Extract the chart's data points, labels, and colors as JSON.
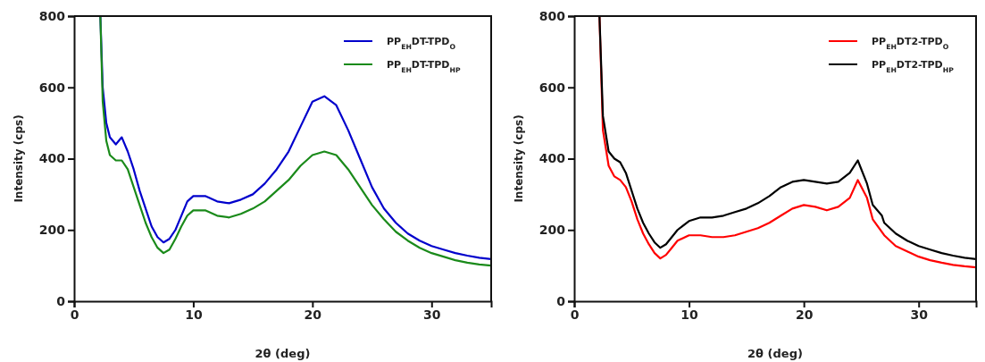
{
  "chart_data": [
    {
      "type": "line",
      "xlabel": "2θ (deg)",
      "ylabel": "Intensity (cps)",
      "xlim": [
        0,
        35
      ],
      "ylim": [
        0,
        800
      ],
      "xticks": [
        0,
        10,
        20,
        30
      ],
      "yticks": [
        0,
        200,
        400,
        600,
        800
      ],
      "legend": "top right",
      "grid": false,
      "marker": "none",
      "line_style": "solid",
      "series": [
        {
          "name": "PP$_{EH}$DT-TPD$_{O}$",
          "color": "#0000cc",
          "x": [
            2.2,
            2.4,
            2.7,
            3,
            3.5,
            4,
            4.5,
            5,
            5.5,
            6,
            6.5,
            7,
            7.5,
            8,
            8.5,
            9,
            9.5,
            10,
            11,
            12,
            13,
            14,
            15,
            16,
            17,
            18,
            19,
            20,
            21,
            22,
            23,
            24,
            25,
            26,
            27,
            28,
            29,
            30,
            31,
            32,
            33,
            34,
            35
          ],
          "values": [
            800,
            600,
            500,
            460,
            440,
            460,
            420,
            370,
            310,
            260,
            210,
            180,
            165,
            175,
            200,
            240,
            280,
            295,
            295,
            280,
            275,
            285,
            300,
            330,
            370,
            420,
            490,
            560,
            575,
            550,
            480,
            400,
            320,
            260,
            220,
            190,
            170,
            155,
            145,
            135,
            128,
            122,
            118
          ]
        },
        {
          "name": "PP$_{EH}$DT-TPD$_{HP}$",
          "color": "#1a8a1a",
          "x": [
            2.2,
            2.4,
            2.7,
            3,
            3.5,
            4,
            4.5,
            5,
            5.5,
            6,
            6.5,
            7,
            7.5,
            8,
            8.5,
            9,
            9.5,
            10,
            11,
            12,
            13,
            14,
            15,
            16,
            17,
            18,
            19,
            20,
            21,
            22,
            23,
            24,
            25,
            26,
            27,
            28,
            29,
            30,
            31,
            32,
            33,
            34,
            35
          ],
          "values": [
            800,
            560,
            450,
            410,
            395,
            395,
            370,
            320,
            270,
            220,
            180,
            150,
            135,
            145,
            175,
            210,
            240,
            255,
            255,
            240,
            235,
            245,
            260,
            280,
            310,
            340,
            380,
            410,
            420,
            410,
            370,
            320,
            270,
            230,
            195,
            170,
            150,
            135,
            125,
            115,
            108,
            103,
            100
          ]
        }
      ]
    },
    {
      "type": "line",
      "xlabel": "2θ (deg)",
      "ylabel": "Intensity (cps)",
      "xlim": [
        0,
        35
      ],
      "ylim": [
        0,
        800
      ],
      "xticks": [
        0,
        10,
        20,
        30
      ],
      "yticks": [
        0,
        200,
        400,
        600,
        800
      ],
      "legend": "top right",
      "grid": false,
      "marker": "none",
      "line_style": "solid",
      "series": [
        {
          "name": "PP$_{EH}$DT2-TPD$_{O}$",
          "color": "#ff0000",
          "x": [
            2.2,
            2.5,
            3,
            3.5,
            4,
            4.5,
            5,
            5.5,
            6,
            6.5,
            7,
            7.5,
            8,
            8.5,
            9,
            10,
            11,
            12,
            13,
            14,
            15,
            16,
            17,
            18,
            19,
            20,
            21,
            22,
            23,
            24,
            24.7,
            25.5,
            26,
            27,
            28,
            29,
            30,
            31,
            32,
            33,
            34,
            35
          ],
          "values": [
            800,
            480,
            380,
            350,
            340,
            320,
            280,
            230,
            190,
            160,
            135,
            120,
            130,
            150,
            170,
            185,
            185,
            180,
            180,
            185,
            195,
            205,
            220,
            240,
            260,
            270,
            265,
            255,
            265,
            290,
            340,
            290,
            230,
            185,
            155,
            140,
            125,
            115,
            108,
            102,
            98,
            95
          ]
        },
        {
          "name": "PP$_{EH}$DT2-TPD$_{HP}$",
          "color": "#000000",
          "x": [
            2.2,
            2.5,
            3,
            3.5,
            4,
            4.5,
            5,
            5.5,
            6,
            6.5,
            7,
            7.5,
            8,
            8.5,
            9,
            10,
            11,
            12,
            13,
            14,
            15,
            16,
            17,
            18,
            19,
            20,
            21,
            22,
            23,
            24,
            24.7,
            25.5,
            26,
            26.8,
            27,
            28,
            29,
            30,
            31,
            32,
            33,
            34,
            35
          ],
          "values": [
            800,
            520,
            420,
            400,
            390,
            360,
            310,
            260,
            220,
            190,
            165,
            150,
            160,
            180,
            200,
            225,
            235,
            235,
            240,
            250,
            260,
            275,
            295,
            320,
            335,
            340,
            335,
            330,
            335,
            360,
            395,
            330,
            270,
            240,
            220,
            190,
            170,
            155,
            145,
            135,
            128,
            122,
            118
          ]
        }
      ]
    }
  ]
}
